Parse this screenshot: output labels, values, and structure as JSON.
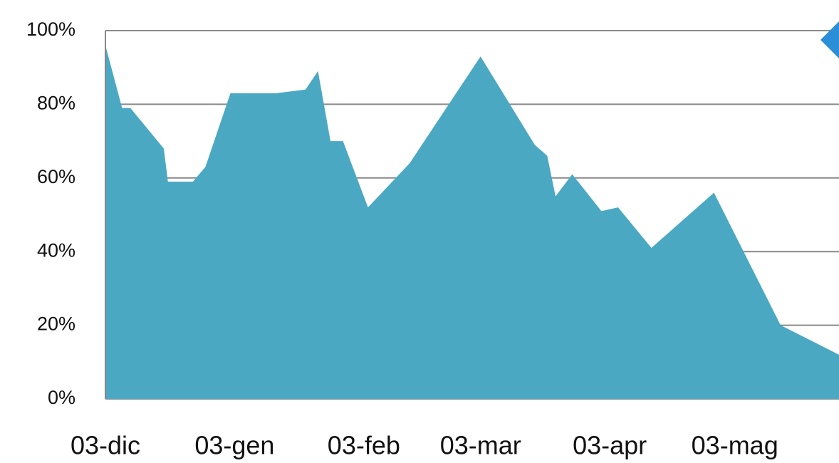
{
  "chart_data": {
    "type": "area",
    "x": [
      0,
      4,
      6,
      14,
      15,
      21,
      24,
      30,
      34,
      41,
      48,
      51,
      54,
      57,
      63,
      73,
      90,
      103,
      106,
      108,
      112,
      119,
      123,
      131,
      146,
      162,
      176
    ],
    "y": [
      96,
      79,
      79,
      68,
      59,
      59,
      63,
      83,
      83,
      83,
      84,
      89,
      70,
      70,
      52,
      64,
      93,
      69,
      66,
      55,
      61,
      51,
      52,
      41,
      56,
      20,
      12
    ],
    "color": "#4ba8c2",
    "xlim": [
      0,
      176
    ],
    "xticks": [
      {
        "value": 0,
        "label": "03-dic"
      },
      {
        "value": 31,
        "label": "03-gen"
      },
      {
        "value": 62,
        "label": "03-feb"
      },
      {
        "value": 90,
        "label": "03-mar"
      },
      {
        "value": 121,
        "label": "03-apr"
      },
      {
        "value": 151,
        "label": "03-mag"
      }
    ],
    "ylim": [
      0,
      100
    ],
    "yticks": [
      {
        "value": 0,
        "label": "0%"
      },
      {
        "value": 20,
        "label": "20%"
      },
      {
        "value": 40,
        "label": "40%"
      },
      {
        "value": 60,
        "label": "60%"
      },
      {
        "value": 80,
        "label": "80%"
      },
      {
        "value": 100,
        "label": "100%"
      }
    ],
    "grid": true
  }
}
